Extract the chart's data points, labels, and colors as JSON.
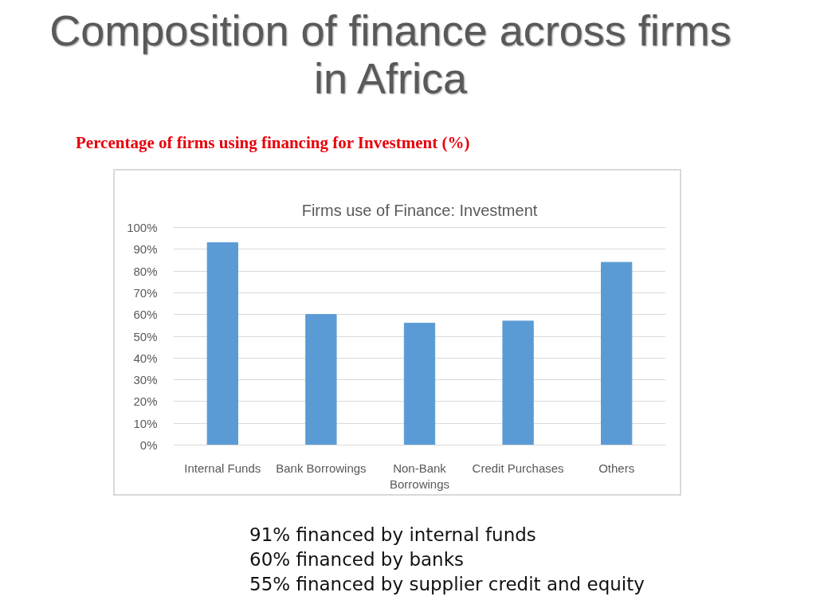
{
  "chart_data": {
    "type": "bar",
    "title": "Composition of finance across firms in Africa",
    "subtitle": "Percentage of firms using financing for Investment (%)",
    "annotations": [
      "Firms use of Finance: Investment",
      "91% financed by internal funds",
      "60% financed by banks",
      "55% financed by supplier credit and equity"
    ],
    "categories": [
      "Internal Funds",
      "Bank Borrowings",
      "Non-Bank Borrowings",
      "Credit Purchases",
      "Others"
    ],
    "values": [
      93,
      60,
      56,
      57,
      84
    ],
    "color": "#5b9bd5",
    "ylim": [
      0,
      100
    ],
    "yticks": [
      {
        "value": 0,
        "label": "0%"
      },
      {
        "value": 10,
        "label": "10%"
      },
      {
        "value": 20,
        "label": "20%"
      },
      {
        "value": 30,
        "label": "30%"
      },
      {
        "value": 40,
        "label": "40%"
      },
      {
        "value": 50,
        "label": "50%"
      },
      {
        "value": 60,
        "label": "60%"
      },
      {
        "value": 70,
        "label": "70%"
      },
      {
        "value": 80,
        "label": "80%"
      },
      {
        "value": 90,
        "label": "90%"
      },
      {
        "value": 100,
        "label": "100%"
      }
    ],
    "grid": "y"
  }
}
